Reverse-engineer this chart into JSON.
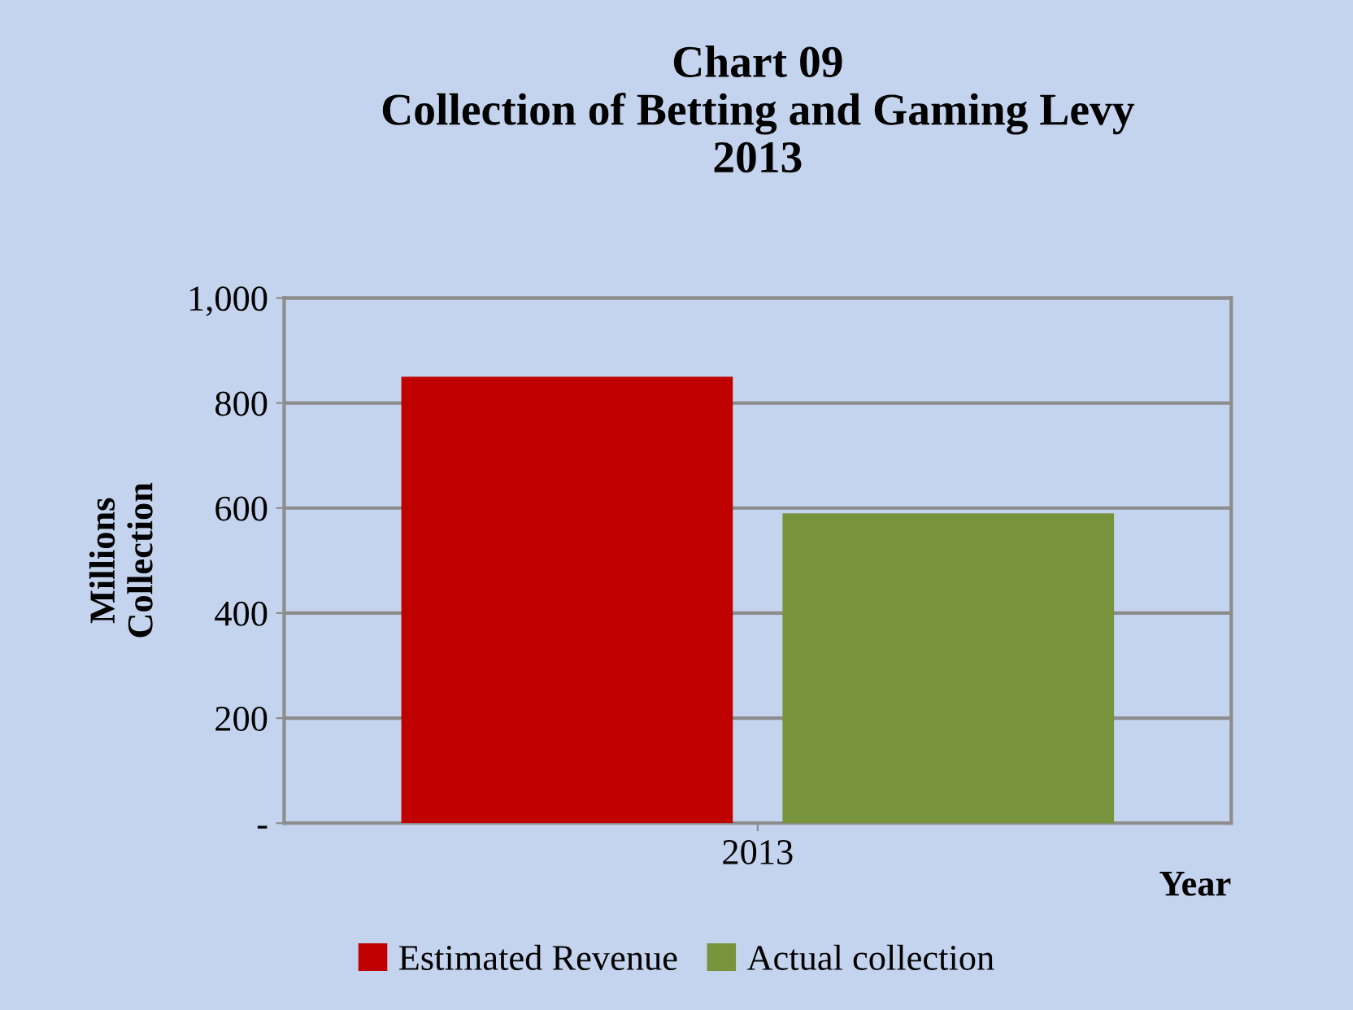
{
  "chart_data": {
    "type": "bar",
    "title": "Chart 09\nCollection of Betting and Gaming Levy\n2013",
    "annotations": [
      "Year"
    ],
    "ylabel": "Millions\nCollection",
    "categories": [
      "2013"
    ],
    "series": [
      {
        "name": "Estimated Revenue",
        "color": "#c00000",
        "values": [
          850
        ]
      },
      {
        "name": "Actual collection",
        "color": "#77933c",
        "values": [
          590
        ]
      }
    ],
    "ylim": [
      0,
      1000
    ],
    "yticks": [
      {
        "value": 0,
        "label": "-"
      },
      200,
      400,
      600,
      800,
      {
        "value": 1000,
        "label": "1,000"
      }
    ],
    "grid": "y",
    "legend": "bottom"
  }
}
